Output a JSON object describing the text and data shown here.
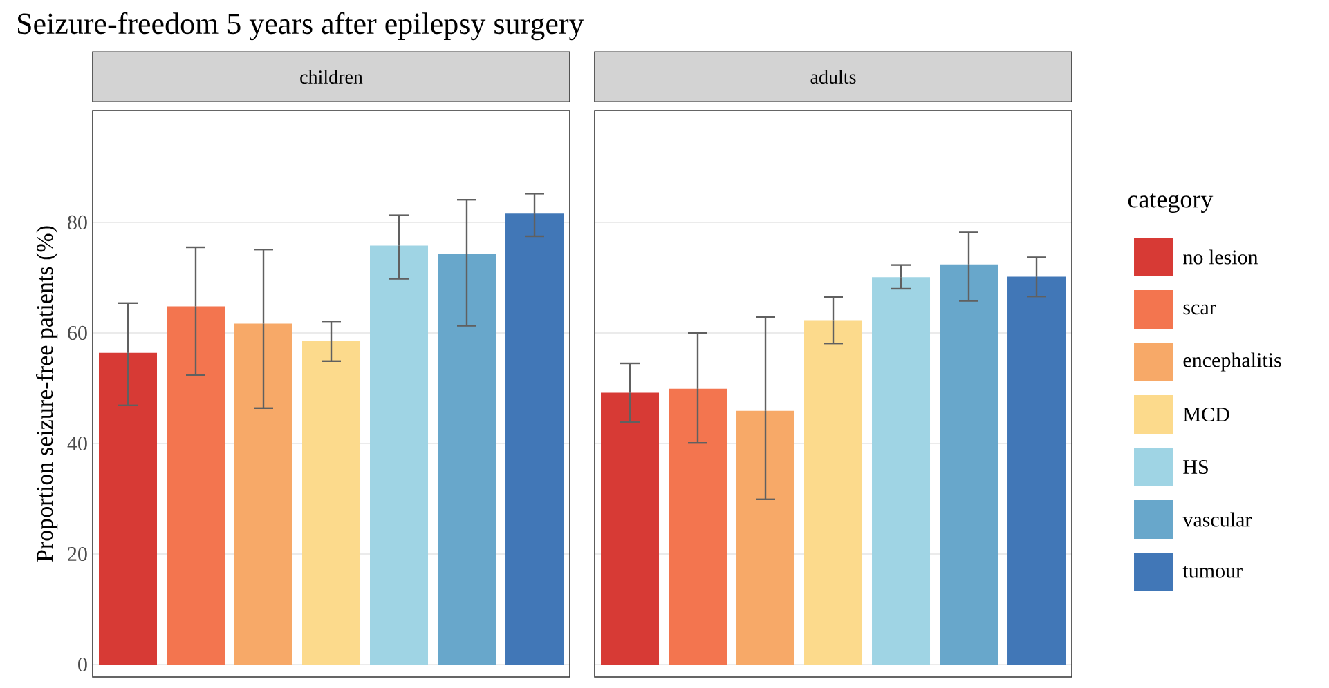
{
  "chart_data": {
    "type": "bar",
    "title": "Seizure-freedom 5 years after epilepsy surgery",
    "ylabel": "Proportion seizure-free patients (%)",
    "legend_title": "category",
    "legend": "right",
    "categories": [
      "children",
      "adults"
    ],
    "series": [
      {
        "name": "no lesion",
        "color": "#d73a35",
        "values": [
          56.4,
          49.2
        ],
        "errors": [
          [
            46.9,
            65.4
          ],
          [
            43.9,
            54.5
          ]
        ]
      },
      {
        "name": "scar",
        "color": "#f3754f",
        "values": [
          64.8,
          49.9
        ],
        "errors": [
          [
            52.4,
            75.5
          ],
          [
            40.1,
            60.0
          ]
        ]
      },
      {
        "name": "encephalitis",
        "color": "#f7a968",
        "values": [
          61.7,
          45.9
        ],
        "errors": [
          [
            46.4,
            75.1
          ],
          [
            29.9,
            62.9
          ]
        ]
      },
      {
        "name": "MCD",
        "color": "#fcda8c",
        "values": [
          58.5,
          62.3
        ],
        "errors": [
          [
            54.9,
            62.1
          ],
          [
            58.1,
            66.5
          ]
        ]
      },
      {
        "name": "HS",
        "color": "#9fd4e4",
        "values": [
          75.8,
          70.1
        ],
        "errors": [
          [
            69.8,
            81.3
          ],
          [
            68.0,
            72.3
          ]
        ]
      },
      {
        "name": "vascular",
        "color": "#68a7cb",
        "values": [
          74.3,
          72.4
        ],
        "errors": [
          [
            61.3,
            84.1
          ],
          [
            65.8,
            78.2
          ]
        ]
      },
      {
        "name": "tumour",
        "color": "#4177b7",
        "values": [
          81.6,
          70.2
        ],
        "errors": [
          [
            77.5,
            85.2
          ],
          [
            66.6,
            73.7
          ]
        ]
      }
    ],
    "ylim": [
      -2.25,
      100.25
    ],
    "yticks": [
      0,
      20,
      40,
      60,
      80
    ],
    "grid": "y"
  }
}
